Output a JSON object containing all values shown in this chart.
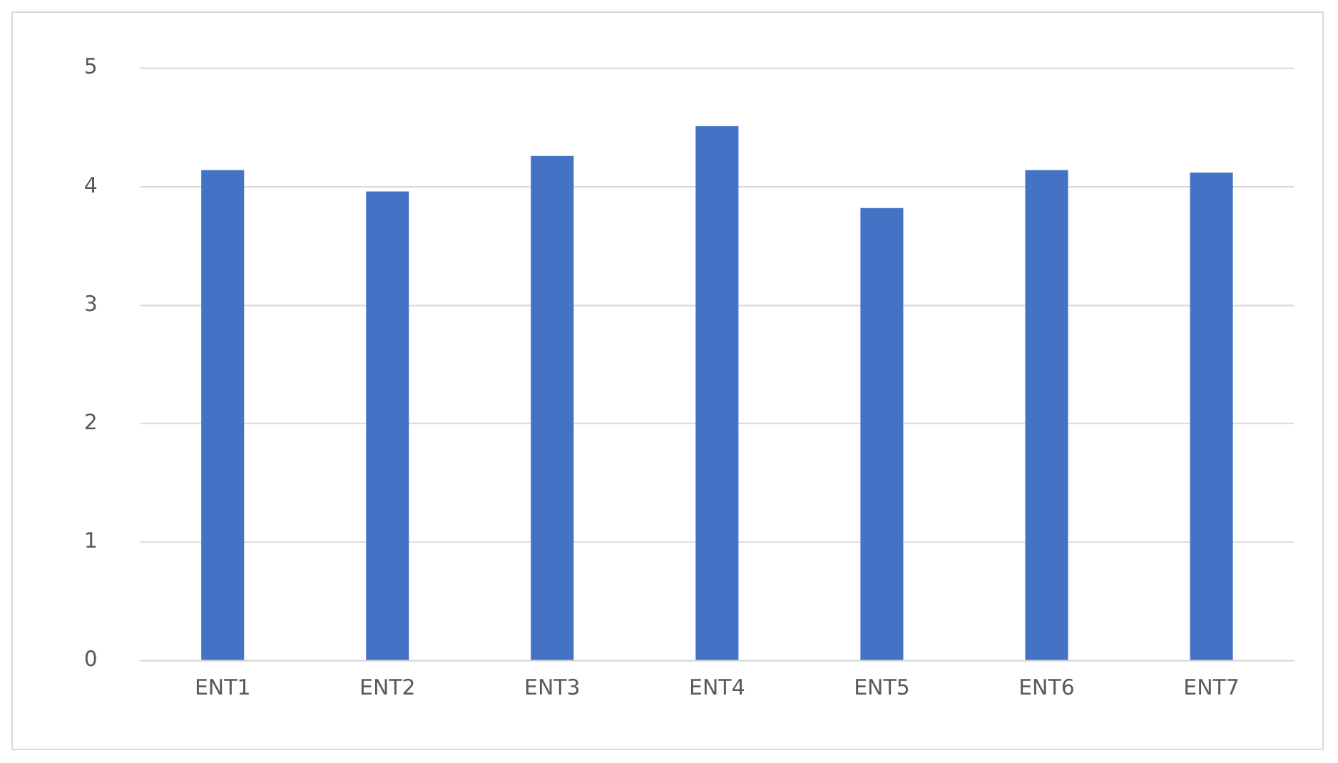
{
  "chart_data": {
    "type": "bar",
    "categories": [
      "ENT1",
      "ENT2",
      "ENT3",
      "ENT4",
      "ENT5",
      "ENT6",
      "ENT7"
    ],
    "values": [
      4.14,
      3.96,
      4.26,
      4.51,
      3.82,
      4.14,
      4.12
    ],
    "color": "#4472c4",
    "ylim": [
      0,
      5
    ],
    "yticks": [
      0,
      1,
      2,
      3,
      4,
      5
    ],
    "grid": "y"
  }
}
